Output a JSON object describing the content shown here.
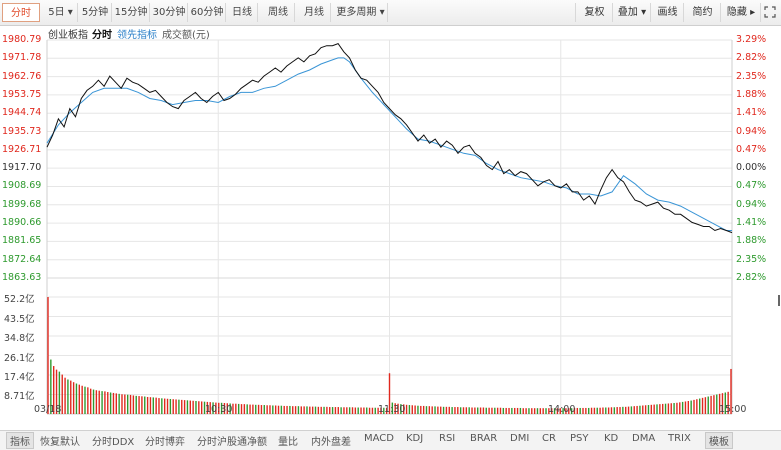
{
  "toolbar": {
    "tabs": [
      "分时",
      "5日 ▾",
      "5分钟",
      "15分钟",
      "30分钟",
      "60分钟",
      "日线",
      "周线",
      "月线",
      "更多周期 ▾"
    ],
    "right_tabs": [
      "复权",
      "叠加 ▾",
      "画线",
      "简约",
      "隐藏 ▸"
    ],
    "fullscreen_icon": "expand-icon"
  },
  "subbar": {
    "name": "创业板指",
    "mode": "分时",
    "leading_label": "领先指标",
    "volume_label": "成交额(元)"
  },
  "colors": {
    "up": "#e0281e",
    "down": "#2e9a2e",
    "price_line": "#111111",
    "leading_line": "#3a95d6",
    "grid": "#e6e6e6",
    "volume_red": "#e0281e",
    "volume_green": "#2e9a2e"
  },
  "price_axis": {
    "labels": [
      "1980.79",
      "1971.78",
      "1962.76",
      "1953.75",
      "1944.74",
      "1935.73",
      "1926.71",
      "1917.70",
      "1908.69",
      "1899.68",
      "1890.66",
      "1881.65",
      "1872.64",
      "1863.63"
    ],
    "pct_labels": [
      "3.29%",
      "2.82%",
      "2.35%",
      "1.88%",
      "1.41%",
      "0.94%",
      "0.47%",
      "0.00%",
      "0.47%",
      "0.94%",
      "1.41%",
      "1.88%",
      "2.35%",
      "2.82%"
    ]
  },
  "volume_axis": {
    "labels": [
      "52.2亿",
      "43.5亿",
      "34.8亿",
      "26.1亿",
      "17.4亿",
      "8.71亿"
    ]
  },
  "time_axis": {
    "labels": [
      "03/18",
      "10:30",
      "11:30",
      "14:00",
      "15:00"
    ]
  },
  "chart_data": {
    "type": "line",
    "preclose": 1917.7,
    "x_range": [
      0,
      240
    ],
    "ylim": [
      1863.63,
      1980.79
    ],
    "series": [
      {
        "name": "",
        "x": [
          0,
          2,
          4,
          6,
          8,
          10,
          12,
          14,
          16,
          18,
          20,
          22,
          24,
          26,
          28,
          30,
          32,
          34,
          36,
          38,
          40,
          42,
          44,
          46,
          48,
          50,
          52,
          54,
          56,
          58,
          60,
          62,
          64,
          66,
          68,
          70,
          72,
          74,
          76,
          78,
          80,
          82,
          84,
          86,
          88,
          90,
          92,
          94,
          96,
          98,
          100,
          102,
          104,
          106,
          108,
          110,
          112,
          114,
          116,
          118,
          120,
          122,
          124,
          126,
          128,
          130,
          132,
          134,
          136,
          138,
          140,
          142,
          144,
          146,
          148,
          150,
          152,
          154,
          156,
          158,
          160,
          162,
          164,
          166,
          168,
          170,
          172,
          174,
          176,
          178,
          180,
          182,
          184,
          186,
          188,
          190,
          192,
          194,
          196,
          198,
          200,
          202,
          204,
          206,
          208,
          210,
          212,
          214,
          216,
          218,
          220,
          222,
          224,
          226,
          228,
          230,
          232,
          234,
          236,
          238,
          240
        ],
        "values": [
          1928,
          1934,
          1942,
          1938,
          1947,
          1943,
          1952,
          1956,
          1958,
          1961,
          1958,
          1963,
          1960,
          1957,
          1962,
          1960,
          1959,
          1957,
          1955,
          1956,
          1953,
          1950,
          1948,
          1947,
          1951,
          1953,
          1955,
          1952,
          1950,
          1953,
          1955,
          1951,
          1952,
          1954,
          1957,
          1959,
          1961,
          1960,
          1963,
          1965,
          1967,
          1965,
          1968,
          1970,
          1972,
          1970,
          1973,
          1974,
          1977,
          1978,
          1978,
          1979,
          1975,
          1972,
          1966,
          1962,
          1961,
          1958,
          1955,
          1950,
          1947,
          1944,
          1942,
          1939,
          1935,
          1931,
          1934,
          1930,
          1932,
          1928,
          1931,
          1929,
          1925,
          1928,
          1929,
          1925,
          1923,
          1919,
          1917,
          1921,
          1915,
          1917,
          1914,
          1916,
          1915,
          1912,
          1909,
          1911,
          1912,
          1909,
          1908,
          1910,
          1906,
          1906,
          1902,
          1904,
          1900,
          1907,
          1913,
          1917,
          1913,
          1911,
          1906,
          1902,
          1901,
          1899,
          1900,
          1901,
          1898,
          1897,
          1895,
          1895,
          1893,
          1891,
          1890,
          1889,
          1889,
          1887,
          1888,
          1887,
          1886
        ]
      },
      {
        "name": "",
        "x": [
          0,
          4,
          8,
          12,
          16,
          20,
          24,
          28,
          32,
          36,
          40,
          44,
          48,
          52,
          56,
          60,
          64,
          68,
          72,
          76,
          80,
          84,
          88,
          92,
          96,
          100,
          102,
          104,
          106,
          110,
          114,
          118,
          122,
          126,
          130,
          134,
          138,
          142,
          146,
          150,
          154,
          158,
          162,
          166,
          170,
          174,
          178,
          182,
          186,
          190,
          194,
          198,
          202,
          206,
          210,
          214,
          218,
          222,
          226,
          230,
          234,
          238,
          240
        ],
        "values": [
          1930,
          1939,
          1945,
          1950,
          1955,
          1957,
          1957,
          1957,
          1955,
          1952,
          1951,
          1949,
          1950,
          1951,
          1951,
          1950,
          1953,
          1955,
          1955,
          1957,
          1958,
          1961,
          1964,
          1966,
          1969,
          1971,
          1972,
          1972,
          1970,
          1962,
          1955,
          1949,
          1943,
          1937,
          1932,
          1931,
          1929,
          1927,
          1925,
          1924,
          1920,
          1917,
          1915,
          1913,
          1912,
          1911,
          1909,
          1908,
          1905,
          1905,
          1904,
          1906,
          1914,
          1910,
          1905,
          1902,
          1901,
          1899,
          1896,
          1893,
          1890,
          1887,
          1887
        ]
      }
    ],
    "volume": {
      "unit": "亿",
      "ylim": [
        0,
        52.2
      ],
      "values": [
        52.2,
        24.3,
        21.4,
        19.8,
        18.9,
        17.6,
        16.2,
        15.4,
        14.9,
        14.2,
        13.6,
        13.1,
        12.6,
        12.2,
        11.9,
        11.3,
        10.9,
        10.6,
        10.4,
        10.2,
        10.1,
        9.8,
        9.6,
        9.4,
        9.2,
        9.0,
        8.8,
        8.7,
        8.6,
        8.5,
        8.3,
        8.1,
        8.0,
        7.9,
        7.8,
        7.6,
        7.5,
        7.4,
        7.3,
        7.1,
        7.0,
        6.9,
        6.8,
        6.7,
        6.6,
        6.5,
        6.4,
        6.3,
        6.2,
        6.1,
        6.0,
        5.9,
        5.8,
        5.7,
        5.6,
        5.5,
        5.4,
        5.3,
        5.2,
        5.1,
        5.0,
        5.0,
        4.9,
        4.8,
        4.7,
        4.6,
        4.6,
        4.5,
        4.4,
        4.4,
        4.3,
        4.2,
        4.2,
        4.1,
        4.1,
        4.0,
        4.0,
        3.9,
        3.9,
        3.8,
        3.8,
        3.7,
        3.7,
        3.6,
        3.6,
        3.6,
        3.5,
        3.5,
        3.5,
        3.4,
        3.4,
        3.4,
        3.3,
        3.3,
        3.3,
        3.2,
        3.2,
        3.2,
        3.2,
        3.1,
        3.1,
        3.1,
        3.1,
        3.0,
        3.0,
        3.0,
        3.0,
        3.0,
        2.9,
        2.9,
        2.9,
        2.9,
        2.9,
        2.8,
        2.8,
        2.8,
        2.8,
        2.8,
        2.8,
        2.7,
        18.2,
        5.1,
        4.8,
        4.6,
        4.4,
        4.3,
        4.1,
        4.0,
        3.9,
        3.8,
        3.7,
        3.6,
        3.6,
        3.5,
        3.5,
        3.4,
        3.4,
        3.3,
        3.3,
        3.2,
        3.2,
        3.2,
        3.1,
        3.1,
        3.1,
        3.0,
        3.0,
        3.0,
        3.0,
        2.9,
        2.9,
        2.9,
        2.9,
        2.9,
        2.8,
        2.8,
        2.8,
        2.8,
        2.8,
        2.8,
        2.7,
        2.7,
        2.7,
        2.7,
        2.7,
        2.7,
        2.7,
        2.6,
        2.6,
        2.6,
        2.6,
        2.6,
        2.6,
        2.6,
        2.6,
        2.6,
        2.6,
        2.6,
        2.6,
        2.6,
        2.6,
        2.6,
        2.6,
        2.6,
        2.6,
        2.7,
        2.7,
        2.7,
        2.7,
        2.7,
        2.7,
        2.8,
        2.8,
        2.8,
        2.8,
        2.9,
        2.9,
        2.9,
        3.0,
        3.0,
        3.1,
        3.1,
        3.2,
        3.2,
        3.3,
        3.4,
        3.5,
        3.6,
        3.7,
        3.8,
        3.9,
        4.0,
        4.1,
        4.2,
        4.3,
        4.4,
        4.5,
        4.6,
        4.7,
        4.8,
        4.9,
        5.0,
        5.2,
        5.4,
        5.6,
        5.8,
        6.0,
        6.3,
        6.6,
        6.9,
        7.2,
        7.5,
        7.8,
        8.1,
        8.4,
        8.7,
        9.0,
        9.3,
        9.6,
        9.9,
        20.1
      ]
    }
  },
  "bottom_bar": {
    "items": [
      "指标",
      "恢复默认",
      "分时DDX",
      "分时博弈",
      "分时沪股通净额",
      "量比",
      "内外盘差",
      "MACD",
      "KDJ",
      "RSI",
      "BRAR",
      "DMI",
      "CR",
      "PSY",
      "KD",
      "DMA",
      "TRIX"
    ],
    "template_label": "模板"
  }
}
